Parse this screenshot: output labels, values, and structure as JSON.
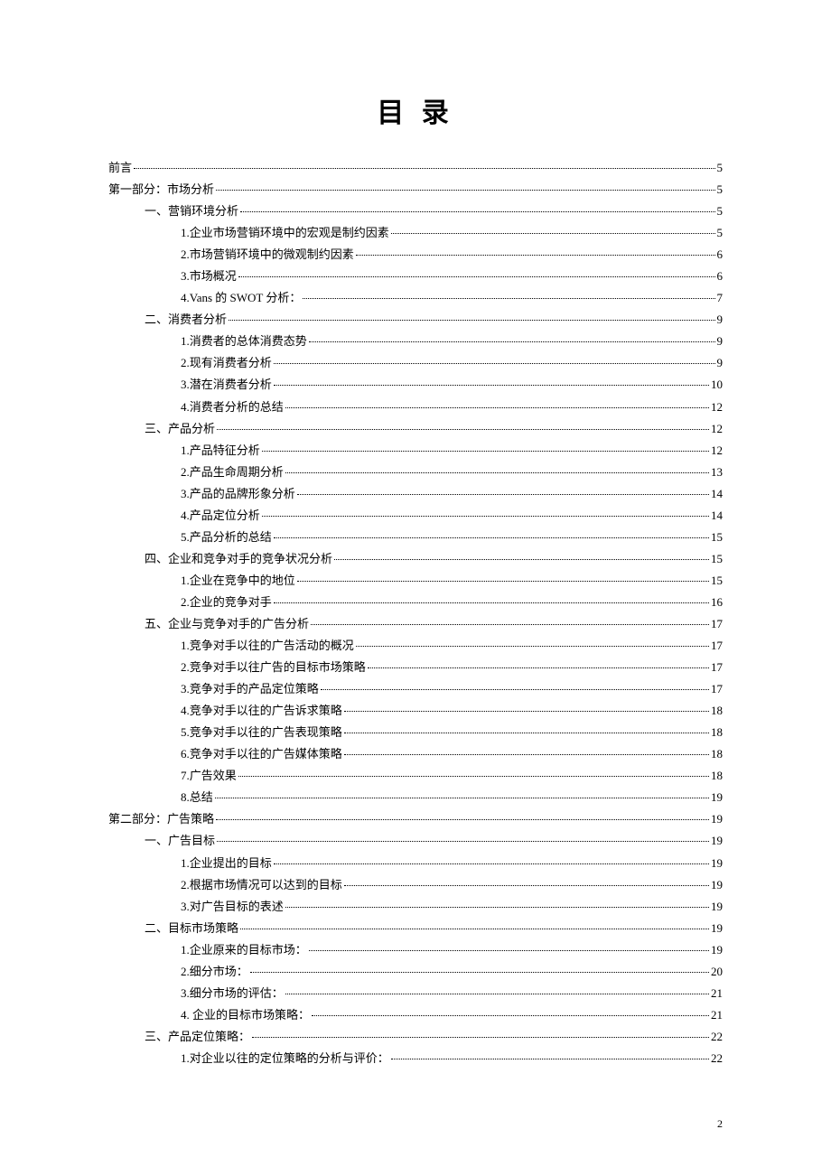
{
  "title": "目 录",
  "pageNumber": "2",
  "entries": [
    {
      "level": 0,
      "label": "前言",
      "page": "5"
    },
    {
      "level": 0,
      "label": "第一部分：市场分析",
      "page": "5"
    },
    {
      "level": 1,
      "label": "一、营销环境分析",
      "page": "5"
    },
    {
      "level": 2,
      "label": "1.企业市场营销环境中的宏观是制约因素",
      "page": "5"
    },
    {
      "level": 2,
      "label": "2.市场营销环境中的微观制约因素",
      "page": "6"
    },
    {
      "level": 2,
      "label": "3.市场概况",
      "page": "6"
    },
    {
      "level": 2,
      "label": "4.Vans 的 SWOT 分析：",
      "page": "7"
    },
    {
      "level": 1,
      "label": "二、消费者分析",
      "page": "9"
    },
    {
      "level": 2,
      "label": "1.消费者的总体消费态势",
      "page": "9"
    },
    {
      "level": 2,
      "label": "2.现有消费者分析",
      "page": "9"
    },
    {
      "level": 2,
      "label": "3.潜在消费者分析",
      "page": "10"
    },
    {
      "level": 2,
      "label": "4.消费者分析的总结",
      "page": "12"
    },
    {
      "level": 1,
      "label": "三、产品分析",
      "page": "12"
    },
    {
      "level": 2,
      "label": "1.产品特征分析",
      "page": "12"
    },
    {
      "level": 2,
      "label": "2.产品生命周期分析",
      "page": "13"
    },
    {
      "level": 2,
      "label": "3.产品的品牌形象分析",
      "page": "14"
    },
    {
      "level": 2,
      "label": "4.产品定位分析",
      "page": "14"
    },
    {
      "level": 2,
      "label": "5.产品分析的总结",
      "page": "15"
    },
    {
      "level": 1,
      "label": "四、企业和竞争对手的竞争状况分析",
      "page": "15"
    },
    {
      "level": 2,
      "label": "1.企业在竞争中的地位",
      "page": "15"
    },
    {
      "level": 2,
      "label": "2.企业的竞争对手",
      "page": "16"
    },
    {
      "level": 1,
      "label": "五、企业与竞争对手的广告分析",
      "page": "17"
    },
    {
      "level": 2,
      "label": "1.竞争对手以往的广告活动的概况",
      "page": "17"
    },
    {
      "level": 2,
      "label": "2.竞争对手以往广告的目标市场策略",
      "page": "17"
    },
    {
      "level": 2,
      "label": "3.竞争对手的产品定位策略",
      "page": "17"
    },
    {
      "level": 2,
      "label": "4.竞争对手以往的广告诉求策略",
      "page": "18"
    },
    {
      "level": 2,
      "label": "5.竞争对手以往的广告表现策略",
      "page": "18"
    },
    {
      "level": 2,
      "label": "6.竞争对手以往的广告媒体策略",
      "page": "18"
    },
    {
      "level": 2,
      "label": "7.广告效果",
      "page": "18"
    },
    {
      "level": 2,
      "label": "8.总结",
      "page": "19"
    },
    {
      "level": 0,
      "label": "第二部分：广告策略",
      "page": "19"
    },
    {
      "level": 1,
      "label": "一、广告目标",
      "page": "19"
    },
    {
      "level": 2,
      "label": "1.企业提出的目标",
      "page": "19"
    },
    {
      "level": 2,
      "label": "2.根据市场情况可以达到的目标",
      "page": "19"
    },
    {
      "level": 2,
      "label": "3.对广告目标的表述",
      "page": "19"
    },
    {
      "level": 1,
      "label": "二、目标市场策略",
      "page": "19"
    },
    {
      "level": 2,
      "label": "1.企业原来的目标市场：",
      "page": "19"
    },
    {
      "level": 2,
      "label": "2.细分市场：",
      "page": "20"
    },
    {
      "level": 2,
      "label": "3.细分市场的评估：",
      "page": "21"
    },
    {
      "level": 2,
      "label": "4. 企业的目标市场策略：",
      "page": "21"
    },
    {
      "level": 1,
      "label": "三、产品定位策略：",
      "page": "22"
    },
    {
      "level": 2,
      "label": "1.对企业以往的定位策略的分析与评价：",
      "page": "22"
    }
  ]
}
